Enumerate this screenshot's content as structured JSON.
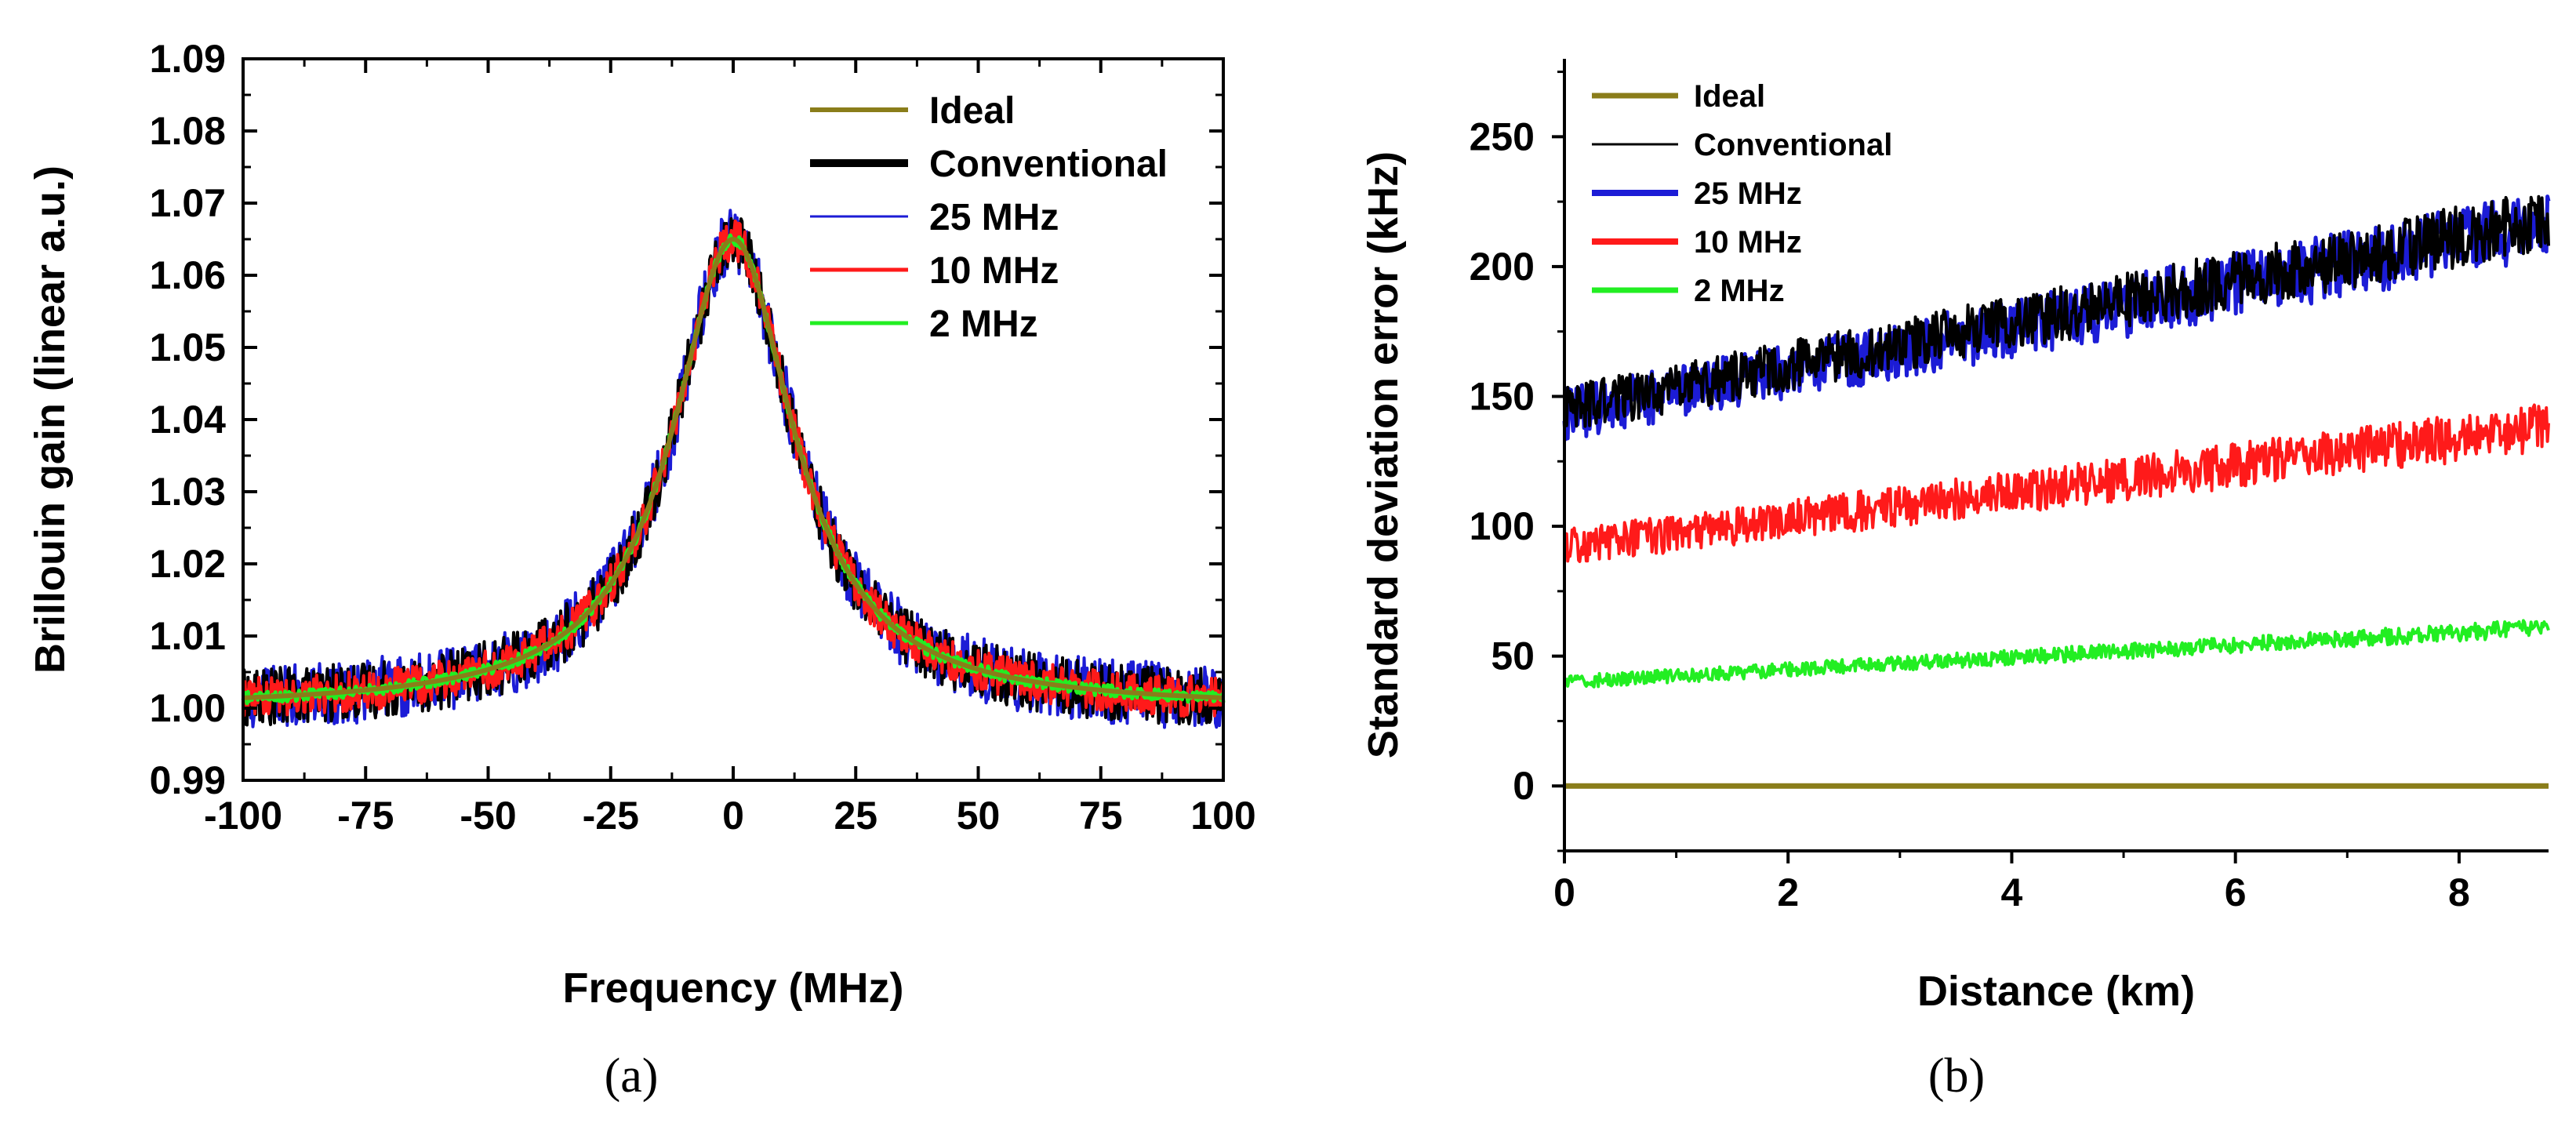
{
  "chart_data": [
    {
      "id": "a",
      "type": "line",
      "caption": "(a)",
      "xlabel": "Frequency (MHz)",
      "ylabel": "Brillouin  gain (linear a.u.)",
      "xlim": [
        -100,
        100
      ],
      "ylim": [
        0.99,
        1.09
      ],
      "xticks": [
        "-100",
        "-75",
        "-50",
        "-25",
        "0",
        "25",
        "50",
        "75",
        "100"
      ],
      "yticks": [
        "0.99",
        "1.00",
        "1.01",
        "1.02",
        "1.03",
        "1.04",
        "1.05",
        "1.06",
        "1.07",
        "1.08",
        "1.09"
      ],
      "legend_position": "top-right",
      "model": {
        "function": "lorentzian",
        "baseline": 1.0,
        "peak_gain": 0.065,
        "center_mhz": 0,
        "fwhm_mhz": 30
      },
      "series": [
        {
          "name": "Ideal",
          "color": "#8a7d1a",
          "noise_amplitude": 0.0
        },
        {
          "name": "Conventional",
          "color": "#000000",
          "noise_amplitude": 0.004
        },
        {
          "name": "25 MHz",
          "color": "#1c1cd6",
          "noise_amplitude": 0.0045
        },
        {
          "name": "10 MHz",
          "color": "#ff1a1a",
          "noise_amplitude": 0.0028
        },
        {
          "name": "2 MHz",
          "color": "#22ee22",
          "noise_amplitude": 0.0008
        }
      ]
    },
    {
      "id": "b",
      "type": "line",
      "caption": "(b)",
      "xlabel": "Distance (km)",
      "ylabel": "Standard deviation error (kHz)",
      "xlim": [
        0,
        8.8
      ],
      "ylim": [
        -25,
        280
      ],
      "xticks": [
        "0",
        "2",
        "4",
        "6",
        "8"
      ],
      "yticks": [
        "0",
        "50",
        "100",
        "150",
        "200",
        "250"
      ],
      "legend_position": "top-left",
      "series": [
        {
          "name": "Ideal",
          "color": "#8a7d1a",
          "start_khz": 0,
          "end_khz": 0,
          "noise_amplitude": 0
        },
        {
          "name": "Conventional",
          "color": "#000000",
          "start_khz": 145,
          "end_khz": 218,
          "noise_amplitude": 9
        },
        {
          "name": "25 MHz",
          "color": "#1c1cd6",
          "start_khz": 143,
          "end_khz": 216,
          "noise_amplitude": 10
        },
        {
          "name": "10 MHz",
          "color": "#ff1a1a",
          "start_khz": 92,
          "end_khz": 138,
          "noise_amplitude": 7
        },
        {
          "name": "2 MHz",
          "color": "#22ee22",
          "start_khz": 40,
          "end_khz": 61,
          "noise_amplitude": 2.5
        }
      ]
    }
  ]
}
